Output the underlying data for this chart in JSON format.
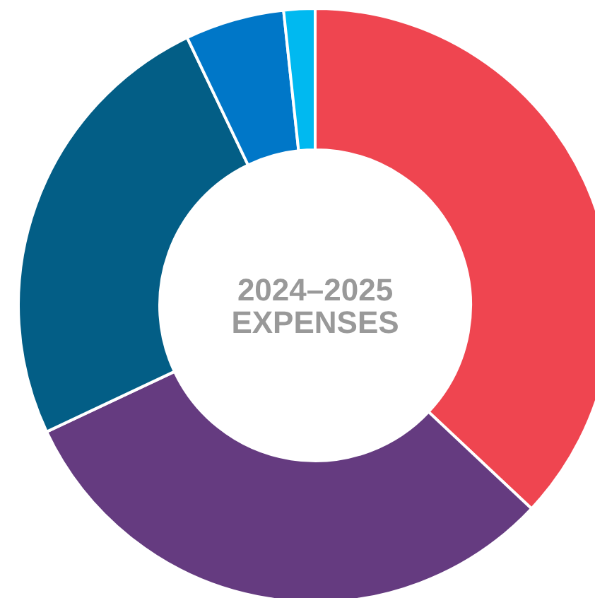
{
  "chart_data": {
    "type": "donut",
    "title": "2024–2025\nEXPENSES",
    "categories": [
      null,
      null,
      null,
      null,
      null
    ],
    "values": [
      37,
      31,
      24.9,
      5.4,
      1.7
    ],
    "colors": [
      "#ef4550",
      "#653b80",
      "#035e86",
      "#0077c8",
      "#00b9f0"
    ]
  }
}
